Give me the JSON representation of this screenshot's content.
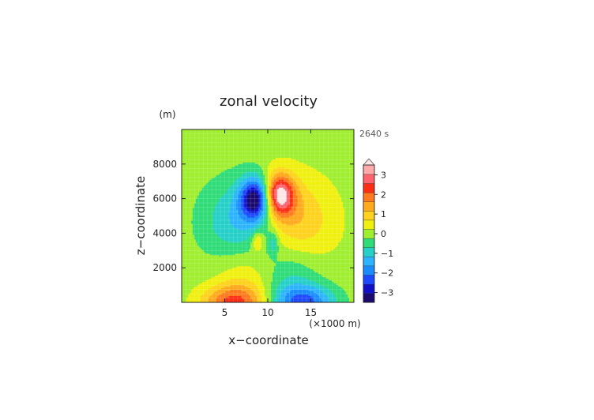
{
  "chart_data": {
    "type": "heatmap",
    "title": "zonal velocity",
    "xlabel": "x−coordinate",
    "ylabel": "z−coordinate",
    "x_unit": "(×1000 m)",
    "y_unit": "(m)",
    "time_label": "2640 s",
    "xlim": [
      0,
      20
    ],
    "ylim": [
      0,
      10000
    ],
    "x_ticks": [
      {
        "value": 5,
        "label": "5"
      },
      {
        "value": 10,
        "label": "10"
      },
      {
        "value": 15,
        "label": "15"
      }
    ],
    "y_ticks": [
      {
        "value": 2000,
        "label": "2000"
      },
      {
        "value": 4000,
        "label": "4000"
      },
      {
        "value": 6000,
        "label": "6000"
      },
      {
        "value": 8000,
        "label": "8000"
      }
    ],
    "grid": true,
    "colorbar": {
      "levels": [
        -3.5,
        -3.0,
        -2.5,
        -2.0,
        -1.5,
        -1.0,
        -0.5,
        0.0,
        0.5,
        1.0,
        1.5,
        2.0,
        2.5,
        3.0,
        3.5
      ],
      "colors": [
        "#1a0a6e",
        "#1010c8",
        "#1e4aff",
        "#1a8cff",
        "#2db4ff",
        "#26d0c8",
        "#30dc78",
        "#a0ee30",
        "#f0f010",
        "#ffd21e",
        "#ffaa1e",
        "#ff7a1e",
        "#ff2d14",
        "#ff646e",
        "#ffaaaa"
      ],
      "over_color": "#ffe6e6",
      "tick_labels": [
        {
          "value": 3,
          "label": "3"
        },
        {
          "value": 2,
          "label": "2"
        },
        {
          "value": 1,
          "label": "1"
        },
        {
          "value": 0,
          "label": "0"
        },
        {
          "value": -1,
          "label": "−1"
        },
        {
          "value": -2,
          "label": "−2"
        },
        {
          "value": -3,
          "label": "−3"
        }
      ]
    },
    "field": {
      "description_units": "m/s",
      "upstream_uniform": 0.3,
      "downstream_uniform": 0.3,
      "components": [
        {
          "x": 8.7,
          "z": 6000,
          "amp": -3.6,
          "sx": 1.3,
          "sz": 850
        },
        {
          "x": 11.2,
          "z": 6200,
          "amp": 3.6,
          "sx": 1.3,
          "sz": 850
        },
        {
          "x": 7.3,
          "z": 4600,
          "amp": -1.6,
          "sx": 3.2,
          "sz": 1700
        },
        {
          "x": 12.6,
          "z": 4700,
          "amp": 1.5,
          "sx": 3.2,
          "sz": 1700
        },
        {
          "x": 6.0,
          "z": 0,
          "amp": 2.2,
          "sx": 2.6,
          "sz": 700
        },
        {
          "x": 14.2,
          "z": 0,
          "amp": -2.3,
          "sx": 2.6,
          "sz": 700
        },
        {
          "x": 7.5,
          "z": 1600,
          "amp": 0.8,
          "sx": 2.5,
          "sz": 1500
        },
        {
          "x": 12.5,
          "z": 1600,
          "amp": -0.9,
          "sx": 2.5,
          "sz": 1500
        },
        {
          "x": 8.8,
          "z": 3500,
          "amp": 1.1,
          "sx": 0.45,
          "sz": 400
        },
        {
          "x": 10.6,
          "z": 3400,
          "amp": -1.0,
          "sx": 0.45,
          "sz": 500
        }
      ]
    }
  }
}
